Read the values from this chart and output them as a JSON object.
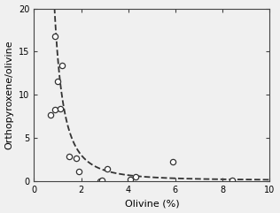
{
  "x_data": [
    0.7,
    0.9,
    0.9,
    1.0,
    1.1,
    1.2,
    1.5,
    1.8,
    1.9,
    2.8,
    2.9,
    3.1,
    4.1,
    4.3,
    5.9,
    8.4
  ],
  "y_data": [
    7.7,
    16.8,
    8.3,
    11.6,
    8.4,
    13.4,
    2.9,
    2.7,
    1.1,
    0.05,
    0.15,
    1.4,
    0.25,
    0.5,
    2.3,
    0.1
  ],
  "curve_a": 14.5,
  "curve_b": 2.3,
  "curve_c": 0.1,
  "curve_x_start": 0.55,
  "curve_x_end": 10.0,
  "xlim": [
    0,
    10
  ],
  "ylim": [
    0,
    20
  ],
  "xticks": [
    0,
    2,
    4,
    6,
    8,
    10
  ],
  "yticks": [
    0,
    5,
    10,
    15,
    20
  ],
  "xlabel": "Olivine (%)",
  "ylabel": "Orthopyroxene/olivine",
  "marker": "o",
  "marker_size": 4.5,
  "marker_facecolor": "white",
  "marker_edgecolor": "#333333",
  "line_color": "#333333",
  "line_style": "--",
  "line_width": 1.3,
  "background_color": "#f0f0f0",
  "tick_direction": "in",
  "box": true
}
